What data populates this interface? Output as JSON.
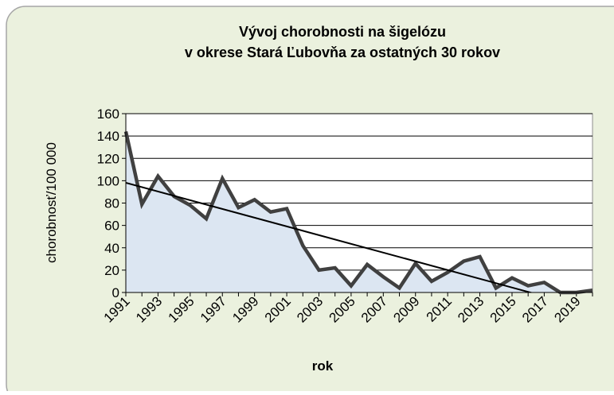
{
  "chart_data": {
    "type": "line",
    "title": [
      "Vývoj chorobnosti na šigelózu",
      "v okrese Stará Ľubovňa za ostatných 30 rokov"
    ],
    "xlabel": "rok",
    "ylabel": "chorobnosť/100 000",
    "categories": [
      "1991",
      null,
      "1993",
      null,
      "1995",
      null,
      "1997",
      null,
      "1999",
      null,
      "2001",
      null,
      "2003",
      null,
      "2005",
      null,
      "2007",
      null,
      "2009",
      null,
      "2011",
      null,
      "2013",
      null,
      "2015",
      null,
      "2017",
      null,
      "2019",
      null
    ],
    "values": [
      144,
      79,
      104,
      86,
      78,
      66,
      102,
      76,
      83,
      72,
      75,
      42,
      20,
      22,
      6,
      25,
      14,
      4,
      26,
      10,
      18,
      28,
      32,
      4,
      13,
      6,
      9,
      0,
      0,
      2
    ],
    "color": "#404040",
    "area_color": "#dce6f2",
    "trendline": true,
    "ylim": [
      0,
      160
    ],
    "yticks": [
      0,
      20,
      40,
      60,
      80,
      100,
      120,
      140,
      160
    ],
    "grid": true
  }
}
